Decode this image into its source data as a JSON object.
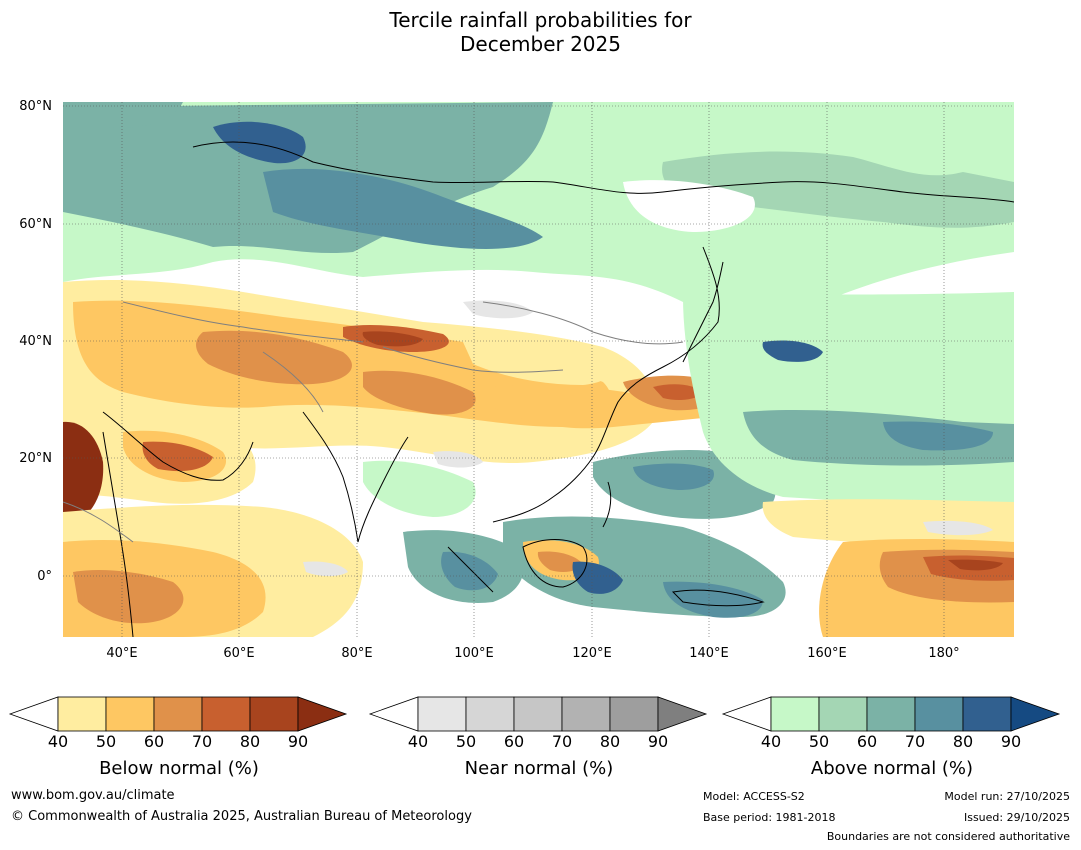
{
  "title_line1": "Tercile rainfall probabilities for",
  "title_line2": "December 2025",
  "lat_labels": [
    "80°N",
    "60°N",
    "40°N",
    "20°N",
    "0°"
  ],
  "lon_labels": [
    "40°E",
    "60°E",
    "80°E",
    "100°E",
    "120°E",
    "140°E",
    "160°E",
    "180°"
  ],
  "colorbars": [
    {
      "id": "below",
      "title": "Below normal (%)",
      "colors": [
        "#ffffff",
        "#ffeda0",
        "#fec762",
        "#e0914a",
        "#c8602f",
        "#a8441e",
        "#8b2e12"
      ],
      "ticks": [
        "40",
        "50",
        "60",
        "70",
        "80",
        "90"
      ]
    },
    {
      "id": "near",
      "title": "Near normal (%)",
      "colors": [
        "#ffffff",
        "#e6e6e6",
        "#d6d6d6",
        "#c6c6c6",
        "#b2b2b2",
        "#9e9e9e",
        "#7f7f7f"
      ],
      "ticks": [
        "40",
        "50",
        "60",
        "70",
        "80",
        "90"
      ]
    },
    {
      "id": "above",
      "title": "Above normal (%)",
      "colors": [
        "#ffffff",
        "#c6f8c8",
        "#a4d6b4",
        "#7bb2a6",
        "#5890a0",
        "#31608f",
        "#154a82"
      ],
      "ticks": [
        "40",
        "50",
        "60",
        "70",
        "80",
        "90"
      ]
    }
  ],
  "footer": {
    "website": "www.bom.gov.au/climate",
    "copyright": "© Commonwealth of Australia 2025, Australian Bureau of Meteorology",
    "model": "Model: ACCESS-S2",
    "base_period": "Base period: 1981-2018",
    "model_run": "Model run: 27/10/2025",
    "issued": "Issued: 29/10/2025",
    "disclaimer": "Boundaries are not considered authoritative"
  },
  "map_colors": {
    "green1": "#c6f8c8",
    "green2": "#a4d6b4",
    "teal3": "#7bb2a6",
    "teal4": "#5890a0",
    "blue5": "#31608f",
    "yellow1": "#ffeda0",
    "orange2": "#fec762",
    "orange3": "#e0914a",
    "rust4": "#c8602f",
    "brown5": "#a8441e",
    "brown6": "#8b2e12",
    "grey1": "#e6e6e6",
    "coast": "#000000",
    "border": "#7f7f7f"
  }
}
